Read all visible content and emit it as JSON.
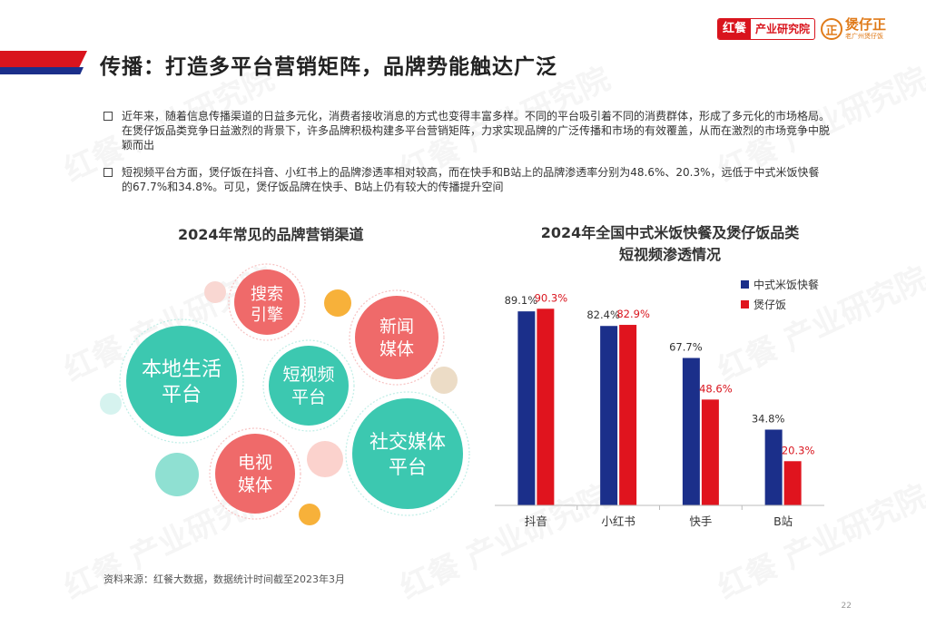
{
  "header": {
    "title": "传播：打造多平台营销矩阵，品牌势能触达广泛",
    "brand_red_a": "红餐",
    "brand_red_b": "产业研究院",
    "brand_logo_mark": "正",
    "brand_logo_name": "煲仔正",
    "brand_logo_sub": "老广州煲仔饭"
  },
  "bullets": [
    "近年来，随着信息传播渠道的日益多元化，消费者接收消息的方式也变得丰富多样。不同的平台吸引着不同的消费群体，形成了多元化的市场格局。在煲仔饭品类竞争日益激烈的背景下，许多品牌积极构建多平台营销矩阵，力求实现品牌的广泛传播和市场的有效覆盖，从而在激烈的市场竞争中脱颖而出",
    "短视频平台方面，煲仔饭在抖音、小红书上的品牌渗透率相对较高，而在快手和B站上的品牌渗透率分别为48.6%、20.3%，远低于中式米饭快餐的67.7%和34.8%。可见，煲仔饭品牌在快手、B站上仍有较大的传播提升空间"
  ],
  "left_chart": {
    "title": "2024年常见的品牌营销渠道",
    "bubbles": [
      {
        "line1": "本地生活",
        "line2": "平台",
        "color": "#3cc8b0"
      },
      {
        "line1": "搜索",
        "line2": "引擎",
        "color": "#ef6a6a"
      },
      {
        "line1": "新闻",
        "line2": "媒体",
        "color": "#ef6a6a"
      },
      {
        "line1": "短视频",
        "line2": "平台",
        "color": "#3cc8b0"
      },
      {
        "line1": "社交媒体",
        "line2": "平台",
        "color": "#3cc8b0"
      },
      {
        "line1": "电视",
        "line2": "媒体",
        "color": "#ef6a6a"
      }
    ]
  },
  "chart_data": {
    "type": "bar",
    "title": "2024年全国中式米饭快餐及煲仔饭品类短视频渗透情况",
    "title_line1": "2024年全国中式米饭快餐及煲仔饭品类",
    "title_line2": "短视频渗透情况",
    "categories": [
      "抖音",
      "小红书",
      "快手",
      "B站"
    ],
    "series": [
      {
        "name": "中式米饭快餐",
        "values": [
          89.1,
          82.4,
          67.7,
          34.8
        ],
        "labels": [
          "89.1%",
          "82.4%",
          "67.7%",
          "34.8%"
        ],
        "color": "#1b2f8a",
        "label_color": "#333333"
      },
      {
        "name": "煲仔饭",
        "values": [
          90.3,
          82.9,
          48.6,
          20.3
        ],
        "labels": [
          "90.3%",
          "82.9%",
          "48.6%",
          "20.3%"
        ],
        "color": "#e0141e",
        "label_color": "#d9141d"
      }
    ],
    "ylim": [
      0,
      100
    ],
    "legend": "top-right",
    "grid": false
  },
  "footer": {
    "source": "资料来源：红餐大数据，数据统计时间截至2023年3月",
    "page": "22"
  },
  "watermark_text": "红餐 产业研究院"
}
